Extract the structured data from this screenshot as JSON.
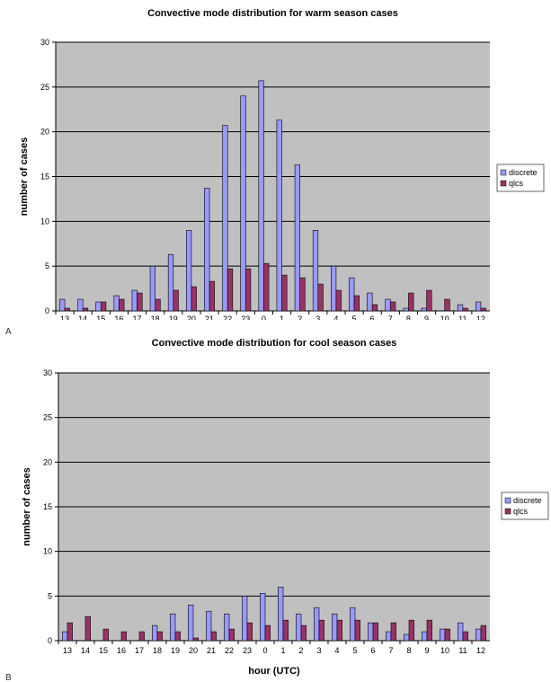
{
  "colors": {
    "plot_bg": "#c0c0c0",
    "grid": "#000000",
    "discrete": "#9999ff",
    "qlcs": "#993366"
  },
  "chart_data": [
    {
      "type": "bar",
      "panel_label": "A",
      "title": "Convective mode distribution for warm season cases",
      "ylabel": "number of cases",
      "xlabel": "",
      "ylim": [
        0,
        30
      ],
      "yticks": [
        0,
        5,
        10,
        15,
        20,
        25,
        30
      ],
      "grid": true,
      "legend": "right",
      "categories": [
        "13",
        "14",
        "15",
        "16",
        "17",
        "18",
        "19",
        "20",
        "21",
        "22",
        "23",
        "0",
        "1",
        "2",
        "3",
        "4",
        "5",
        "6",
        "7",
        "8",
        "9",
        "10",
        "11",
        "12"
      ],
      "series": [
        {
          "name": "discrete",
          "values": [
            1.3,
            1.3,
            1.0,
            1.7,
            2.3,
            5.0,
            6.3,
            9.0,
            13.7,
            20.7,
            24.0,
            25.7,
            21.3,
            16.3,
            9.0,
            5.0,
            3.7,
            2.0,
            1.3,
            0.3,
            0.3,
            0,
            0.7,
            1.0
          ]
        },
        {
          "name": "qlcs",
          "values": [
            0.3,
            0.3,
            1.0,
            1.3,
            2.0,
            1.3,
            2.3,
            2.7,
            3.3,
            4.7,
            4.7,
            5.3,
            4.0,
            3.7,
            3.0,
            2.3,
            1.7,
            0.7,
            1.0,
            2.0,
            2.3,
            1.3,
            0.3,
            0.3
          ]
        }
      ]
    },
    {
      "type": "bar",
      "panel_label": "B",
      "title": "Convective mode distribution for cool season cases",
      "ylabel": "number of cases",
      "xlabel": "hour (UTC)",
      "ylim": [
        0,
        30
      ],
      "yticks": [
        0,
        5,
        10,
        15,
        20,
        25,
        30
      ],
      "grid": true,
      "legend": "right",
      "categories": [
        "13",
        "14",
        "15",
        "16",
        "17",
        "18",
        "19",
        "20",
        "21",
        "22",
        "23",
        "0",
        "1",
        "2",
        "3",
        "4",
        "5",
        "6",
        "7",
        "8",
        "9",
        "10",
        "11",
        "12"
      ],
      "series": [
        {
          "name": "discrete",
          "values": [
            1.0,
            0,
            0,
            0,
            0,
            1.7,
            3.0,
            4.0,
            3.3,
            3.0,
            5.0,
            5.3,
            6.0,
            3.0,
            3.7,
            3.0,
            3.7,
            2.0,
            1.0,
            0.7,
            1.0,
            1.3,
            2.0,
            1.3
          ]
        },
        {
          "name": "qlcs",
          "values": [
            2.0,
            2.7,
            1.3,
            1.0,
            1.0,
            1.0,
            1.0,
            0.3,
            1.0,
            1.3,
            2.0,
            1.7,
            2.3,
            1.7,
            2.3,
            2.3,
            2.3,
            2.0,
            2.0,
            2.3,
            2.3,
            1.3,
            1.0,
            1.7
          ]
        }
      ]
    }
  ]
}
